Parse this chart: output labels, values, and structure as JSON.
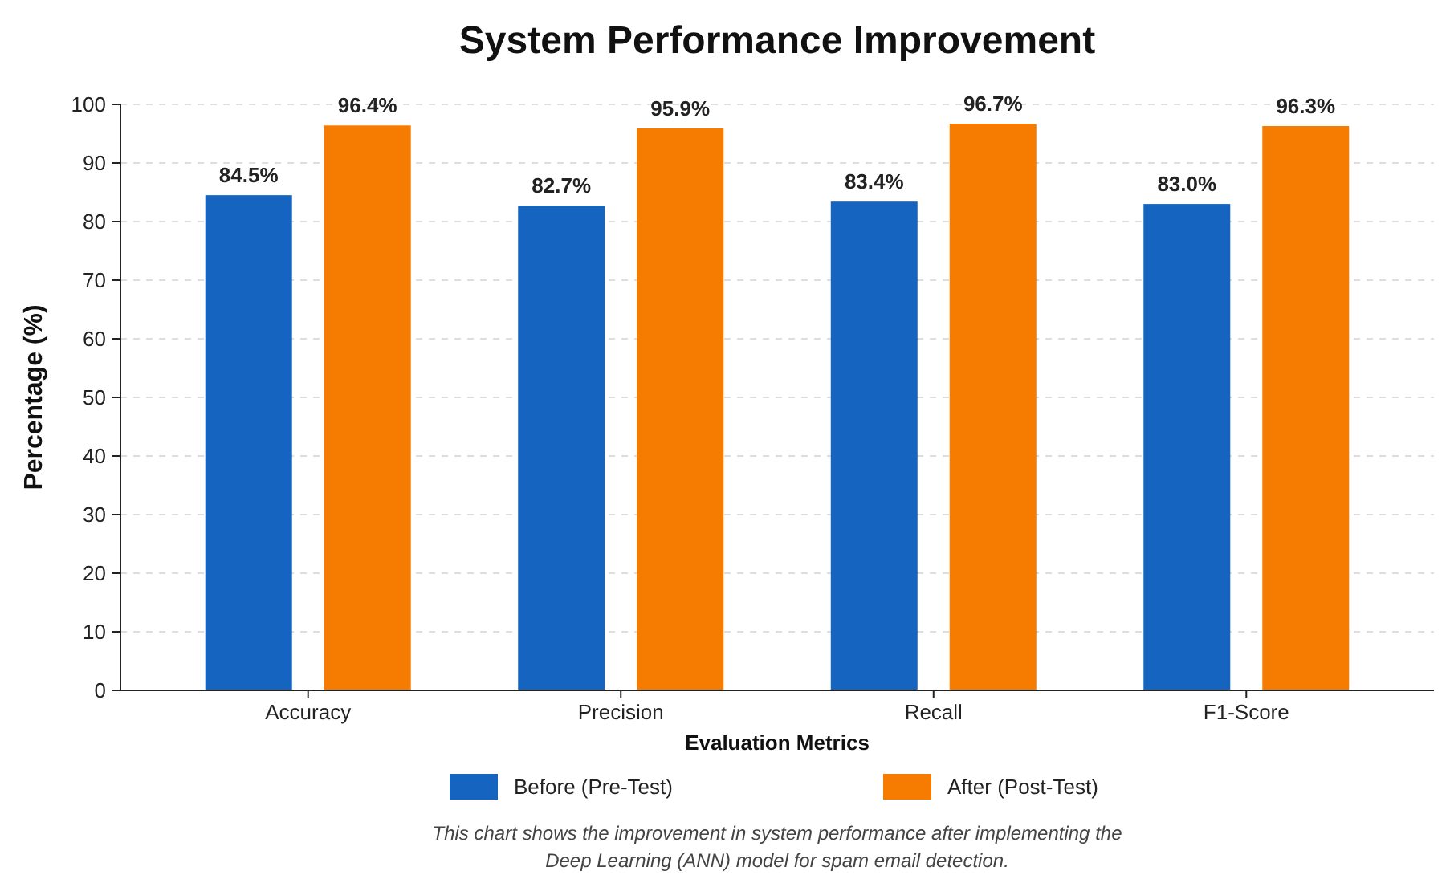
{
  "chart_data": {
    "type": "bar",
    "title": "System Performance Improvement",
    "xlabel": "Evaluation Metrics",
    "ylabel": "Percentage (%)",
    "categories": [
      "Accuracy",
      "Precision",
      "Recall",
      "F1-Score"
    ],
    "series": [
      {
        "name": "Before (Pre-Test)",
        "color": "#1565c0",
        "values": [
          84.5,
          82.7,
          83.4,
          83.0
        ],
        "value_labels": [
          "84.5%",
          "82.7%",
          "83.4%",
          "83.0%"
        ]
      },
      {
        "name": "After (Post-Test)",
        "color": "#f57c00",
        "values": [
          96.4,
          95.9,
          96.7,
          96.3
        ],
        "value_labels": [
          "96.4%",
          "95.9%",
          "96.7%",
          "96.3%"
        ]
      }
    ],
    "ylim": [
      0,
      100
    ],
    "yticks": [
      0,
      10,
      20,
      30,
      40,
      50,
      60,
      70,
      80,
      90,
      100
    ],
    "grid": "y",
    "legend": "bottom",
    "annotations": [
      "This chart shows the improvement in system performance after implementing the Deep Learning (ANN) model for spam email detection."
    ]
  }
}
